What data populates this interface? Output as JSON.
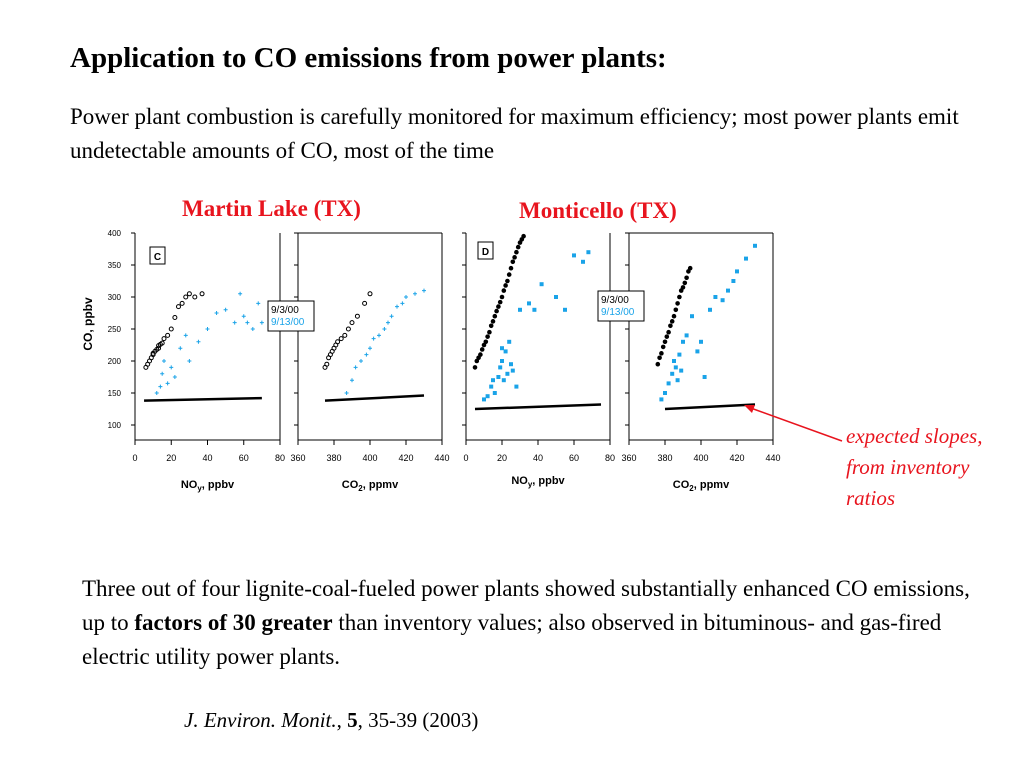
{
  "slide": {
    "title": "Application to CO emissions from power plants:",
    "intro": "Power plant combustion is carefully monitored for maximum efficiency; most power plants emit undetectable amounts of CO, most of the time",
    "summary": {
      "before": "Three out of four lignite-coal-fueled power plants showed substantially enhanced CO emissions, up to ",
      "bold": "factors of 30 greater",
      "after": " than inventory values; also observed in bituminous- and gas-fired electric utility power plants."
    },
    "annotation": "expected slopes, from inventory ratios",
    "citation": {
      "journal": "J. Environ. Monit.",
      "sep": ", ",
      "volume": "5",
      "pages": ", 35-39 (2003)"
    }
  },
  "colors": {
    "date1": "#000000",
    "date2": "#1aa3e8",
    "title": "#e8141e",
    "expected": "#000000"
  },
  "chart_data": [
    {
      "type": "scatter",
      "title": "Martin Lake (TX)",
      "panel_label": "C",
      "ylabel": "CO, ppbv",
      "ylim": [
        90,
        400
      ],
      "yticks": [
        100,
        150,
        200,
        250,
        300,
        350,
        400
      ],
      "legend": [
        "9/3/00",
        "9/13/00"
      ],
      "subplots": [
        {
          "xlabel": "NOy, ppbv",
          "xlim": [
            0,
            80
          ],
          "xticks": [
            0,
            20,
            40,
            60,
            80
          ],
          "series": [
            {
              "name": "9/3/00",
              "marker": "open-circle",
              "x": [
                6,
                7,
                8,
                9,
                10,
                10,
                11,
                12,
                13,
                13,
                14,
                15,
                16,
                18,
                20,
                22,
                24,
                26,
                28,
                30,
                33,
                37
              ],
              "y": [
                190,
                195,
                200,
                205,
                210,
                212,
                215,
                218,
                220,
                224,
                226,
                228,
                235,
                240,
                250,
                268,
                285,
                290,
                300,
                305,
                300,
                305
              ]
            },
            {
              "name": "9/13/00",
              "marker": "plus",
              "x": [
                12,
                14,
                15,
                16,
                18,
                20,
                22,
                25,
                28,
                30,
                35,
                40,
                45,
                50,
                55,
                58,
                60,
                62,
                65,
                68,
                70
              ],
              "y": [
                150,
                160,
                180,
                200,
                165,
                190,
                175,
                220,
                240,
                200,
                230,
                250,
                275,
                280,
                260,
                305,
                270,
                260,
                250,
                290,
                260
              ]
            },
            {
              "name": "expected",
              "marker": "line",
              "x": [
                5,
                70
              ],
              "y": [
                138,
                142
              ]
            }
          ]
        },
        {
          "xlabel": "CO2, ppmv",
          "xlim": [
            360,
            440
          ],
          "xticks": [
            360,
            380,
            400,
            420,
            440
          ],
          "series": [
            {
              "name": "9/3/00",
              "marker": "open-circle",
              "x": [
                375,
                376,
                377,
                378,
                379,
                380,
                381,
                382,
                384,
                386,
                388,
                390,
                393,
                397,
                400
              ],
              "y": [
                190,
                195,
                205,
                210,
                215,
                220,
                225,
                230,
                235,
                240,
                250,
                260,
                270,
                290,
                305
              ]
            },
            {
              "name": "9/13/00",
              "marker": "plus",
              "x": [
                387,
                390,
                392,
                395,
                398,
                400,
                402,
                405,
                408,
                410,
                412,
                415,
                418,
                420,
                425,
                430
              ],
              "y": [
                150,
                170,
                190,
                200,
                210,
                220,
                235,
                240,
                250,
                260,
                270,
                285,
                290,
                300,
                305,
                310
              ]
            },
            {
              "name": "expected",
              "marker": "line",
              "x": [
                375,
                430
              ],
              "y": [
                138,
                146
              ]
            }
          ]
        }
      ]
    },
    {
      "type": "scatter",
      "title": "Monticello (TX)",
      "panel_label": "D",
      "ylabel": "",
      "ylim": [
        90,
        400
      ],
      "legend": [
        "9/3/00",
        "9/13/00"
      ],
      "subplots": [
        {
          "xlabel": "NOy, ppbv",
          "xlim": [
            0,
            80
          ],
          "xticks": [
            0,
            20,
            40,
            60,
            80
          ],
          "series": [
            {
              "name": "9/3/00",
              "marker": "filled-circle",
              "x": [
                5,
                6,
                7,
                8,
                9,
                10,
                11,
                12,
                13,
                14,
                15,
                16,
                17,
                18,
                19,
                20,
                21,
                22,
                23,
                24,
                25,
                26,
                27,
                28,
                29,
                30,
                31,
                32
              ],
              "y": [
                190,
                200,
                205,
                210,
                218,
                225,
                230,
                238,
                245,
                255,
                262,
                270,
                278,
                285,
                292,
                300,
                310,
                318,
                325,
                335,
                345,
                355,
                362,
                370,
                378,
                385,
                390,
                395
              ]
            },
            {
              "name": "9/13/00",
              "marker": "filled-square",
              "x": [
                10,
                12,
                14,
                15,
                16,
                18,
                19,
                20,
                20,
                21,
                22,
                23,
                24,
                25,
                26,
                28,
                30,
                35,
                38,
                42,
                50,
                55,
                60,
                65,
                68
              ],
              "y": [
                140,
                145,
                160,
                170,
                150,
                175,
                190,
                200,
                220,
                170,
                215,
                180,
                230,
                195,
                185,
                160,
                280,
                290,
                280,
                320,
                300,
                280,
                365,
                355,
                370
              ]
            },
            {
              "name": "expected",
              "marker": "line",
              "x": [
                5,
                75
              ],
              "y": [
                125,
                132
              ]
            }
          ]
        },
        {
          "xlabel": "CO2, ppmv",
          "xlim": [
            360,
            440
          ],
          "xticks": [
            360,
            380,
            400,
            420,
            440
          ],
          "series": [
            {
              "name": "9/3/00",
              "marker": "filled-circle",
              "x": [
                376,
                377,
                378,
                379,
                380,
                381,
                382,
                383,
                384,
                385,
                386,
                387,
                388,
                389,
                390,
                391,
                392,
                393,
                394
              ],
              "y": [
                195,
                205,
                212,
                222,
                230,
                238,
                245,
                255,
                262,
                270,
                280,
                290,
                300,
                310,
                315,
                322,
                330,
                340,
                345
              ]
            },
            {
              "name": "9/13/00",
              "marker": "filled-square",
              "x": [
                378,
                380,
                382,
                384,
                385,
                386,
                387,
                388,
                389,
                390,
                392,
                395,
                398,
                400,
                402,
                405,
                408,
                412,
                415,
                418,
                420,
                425,
                430
              ],
              "y": [
                140,
                150,
                165,
                180,
                200,
                190,
                170,
                210,
                185,
                230,
                240,
                270,
                215,
                230,
                175,
                280,
                300,
                295,
                310,
                325,
                340,
                360,
                380
              ]
            },
            {
              "name": "expected",
              "marker": "line",
              "x": [
                380,
                430
              ],
              "y": [
                125,
                132
              ]
            }
          ]
        }
      ]
    }
  ]
}
